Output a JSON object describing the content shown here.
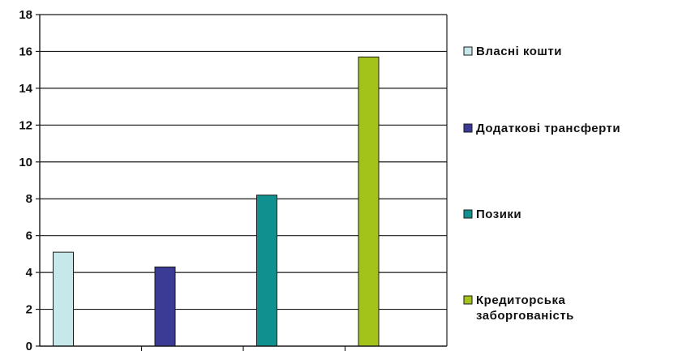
{
  "chart_data": {
    "type": "bar",
    "title": "",
    "xlabel": "",
    "ylabel": "",
    "ylim": [
      0,
      18
    ],
    "yticks": [
      0,
      2,
      4,
      6,
      8,
      10,
      12,
      14,
      16,
      18
    ],
    "grid": true,
    "legend_position": "right",
    "series": [
      {
        "name": "Власні кошти",
        "value": 5.1,
        "color": "#c7e8ea"
      },
      {
        "name": "Додаткові трансферти",
        "value": 4.3,
        "color": "#3b3a94"
      },
      {
        "name": "Позики",
        "value": 8.2,
        "color": "#10918f"
      },
      {
        "name": "Кредиторська заборгованість",
        "legend_lines": [
          "Кредиторська",
          "заборгованість"
        ],
        "value": 15.7,
        "color": "#a3c31b"
      }
    ]
  }
}
